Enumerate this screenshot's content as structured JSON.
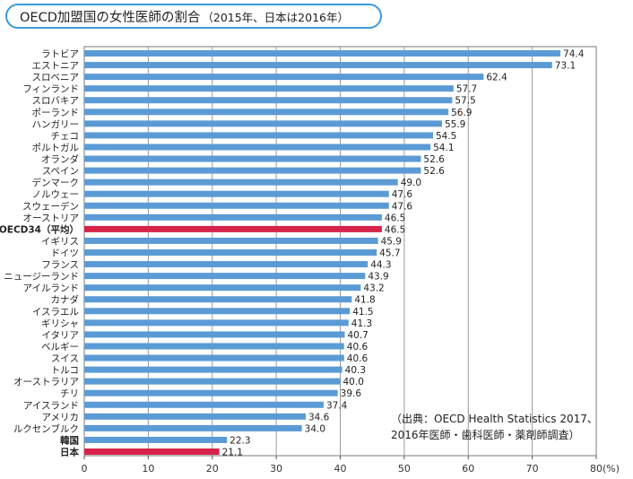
{
  "title": "OECD加盟国の女性医師の割合",
  "subtitle": "（2015年、日本は2016年）",
  "source_line1": "（出典：OECD Health Statistics 2017、",
  "source_line2": "2016年医師・歯科医師・薬剤師調査）",
  "colors": {
    "normal": "#5b9bd5",
    "highlight": "#d6234a",
    "grid": "#9a9a9a",
    "title_border": "#3d9bd6"
  },
  "chart_data": {
    "type": "bar",
    "orientation": "horizontal",
    "title": "OECD加盟国の女性医師の割合",
    "subtitle": "（2015年、日本は2016年）",
    "xlabel": "(%)",
    "ylabel": "",
    "xlim": [
      0,
      80
    ],
    "xticks": [
      0,
      10,
      20,
      30,
      40,
      50,
      60,
      70,
      80
    ],
    "grid": true,
    "categories": [
      "ラトビア",
      "エストニア",
      "スロベニア",
      "フィンランド",
      "スロバキア",
      "ポーランド",
      "ハンガリー",
      "チェコ",
      "ポルトガル",
      "オランダ",
      "スペイン",
      "デンマーク",
      "ノルウェー",
      "スウェーデン",
      "オーストリア",
      "OECD34（平均）",
      "イギリス",
      "ドイツ",
      "フランス",
      "ニュージーランド",
      "アイルランド",
      "カナダ",
      "イスラエル",
      "ギリシャ",
      "イタリア",
      "ベルギー",
      "スイス",
      "トルコ",
      "オーストラリア",
      "チリ",
      "アイスランド",
      "アメリカ",
      "ルクセンブルク",
      "韓国",
      "日本"
    ],
    "values": [
      74.4,
      73.1,
      62.4,
      57.7,
      57.5,
      56.9,
      55.9,
      54.5,
      54.1,
      52.6,
      52.6,
      49.0,
      47.6,
      47.6,
      46.5,
      46.5,
      45.9,
      45.7,
      44.3,
      43.9,
      43.2,
      41.8,
      41.5,
      41.3,
      40.7,
      40.6,
      40.6,
      40.3,
      40.0,
      39.6,
      37.4,
      34.6,
      34.0,
      22.3,
      21.1
    ],
    "value_labels": [
      "74.4",
      "73.1",
      "62.4",
      "57.7",
      "57.5",
      "56.9",
      "55.9",
      "54.5",
      "54.1",
      "52.6",
      "52.6",
      "49.0",
      "47.6",
      "47.6",
      "46.5",
      "46.5",
      "45.9",
      "45.7",
      "44.3",
      "43.9",
      "43.2",
      "41.8",
      "41.5",
      "41.3",
      "40.7",
      "40.6",
      "40.6",
      "40.3",
      "40.0",
      "39.6",
      "37.4",
      "34.6",
      "34.0",
      "22.3",
      "21.1"
    ],
    "highlight": [
      "OECD34（平均）",
      "日本"
    ],
    "bold": [
      "OECD34（平均）",
      "韓国",
      "日本"
    ]
  }
}
